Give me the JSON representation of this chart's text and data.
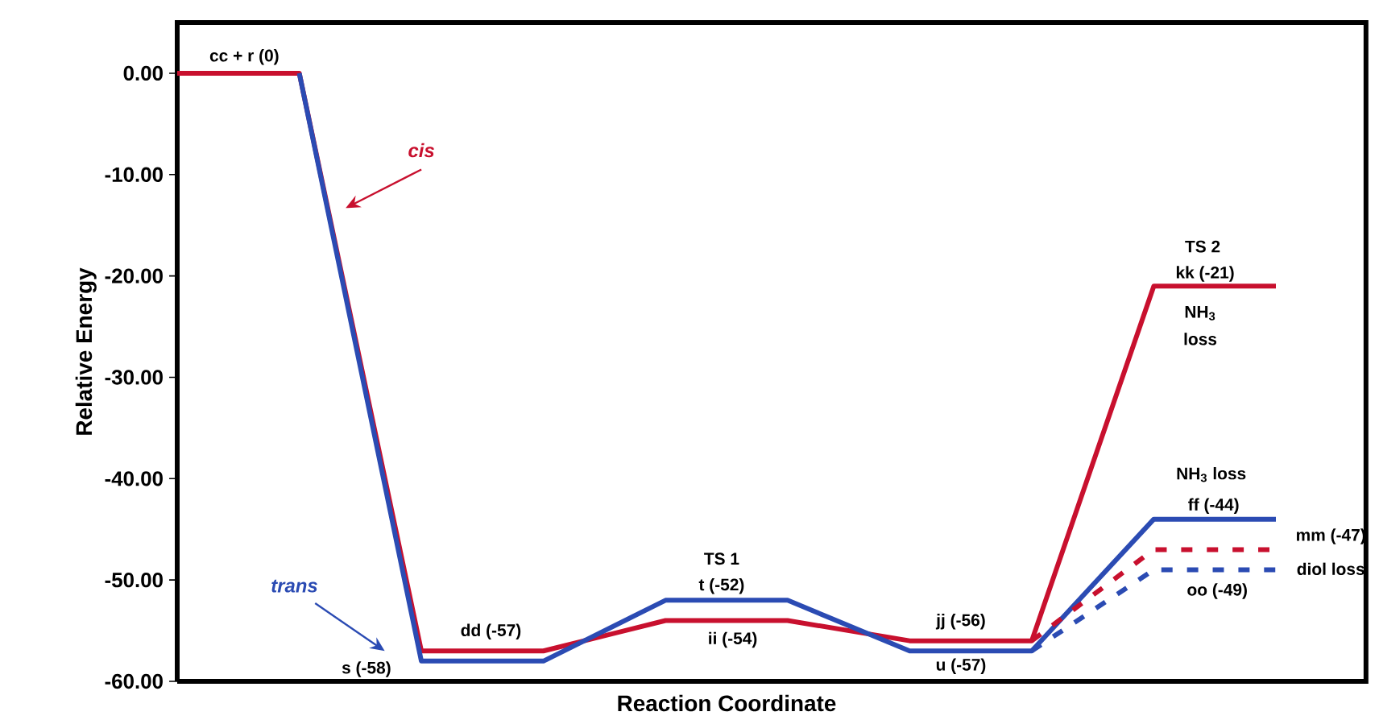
{
  "chart_data": {
    "type": "line",
    "xlabel": "Reaction Coordinate",
    "ylabel": "Relative Energy",
    "categories": [
      null,
      null,
      null,
      null,
      null,
      null,
      null,
      null,
      null,
      null
    ],
    "series": [
      {
        "name": "cis",
        "color": "#c8102e",
        "line_style": "solid",
        "values": [
          0,
          0,
          -57,
          -57,
          -54,
          -54,
          -56,
          -56,
          -21,
          -21
        ]
      },
      {
        "name": "trans",
        "color": "#2b4bb3",
        "line_style": "solid",
        "values": [
          null,
          0,
          -58,
          -58,
          -52,
          -52,
          -57,
          -57,
          -44,
          -44
        ]
      },
      {
        "color": "#c8102e",
        "line_style": "dashed",
        "values": [
          null,
          null,
          null,
          null,
          null,
          null,
          null,
          -56,
          -47,
          -47
        ]
      },
      {
        "color": "#2b4bb3",
        "line_style": "dashed",
        "values": [
          null,
          null,
          null,
          null,
          null,
          null,
          null,
          -57,
          -49,
          -49
        ]
      }
    ],
    "ylim": [
      -60,
      5
    ],
    "yticks": [
      {
        "value": 0,
        "label": "0.00"
      },
      {
        "value": -10,
        "label": "-10.00"
      },
      {
        "value": -20,
        "label": "-20.00"
      },
      {
        "value": -30,
        "label": "-30.00"
      },
      {
        "value": -40,
        "label": "-40.00"
      },
      {
        "value": -50,
        "label": "-50.00"
      },
      {
        "value": -60,
        "label": "-60.00"
      }
    ],
    "tick_labels": "y",
    "grid": false,
    "marker": "none",
    "annotations": [
      "cc + r (0)",
      "s (-58)",
      "dd (-57)",
      "TS 1",
      "t (-52)",
      "ii (-54)",
      "jj (-56)",
      "u (-57)",
      "TS 2",
      "kk (-21)",
      "NH$_{3}$ loss",
      "NH$_{3}$ loss",
      "ff (-44)",
      "mm (-47)",
      "diol loss",
      "oo (-49)"
    ]
  }
}
